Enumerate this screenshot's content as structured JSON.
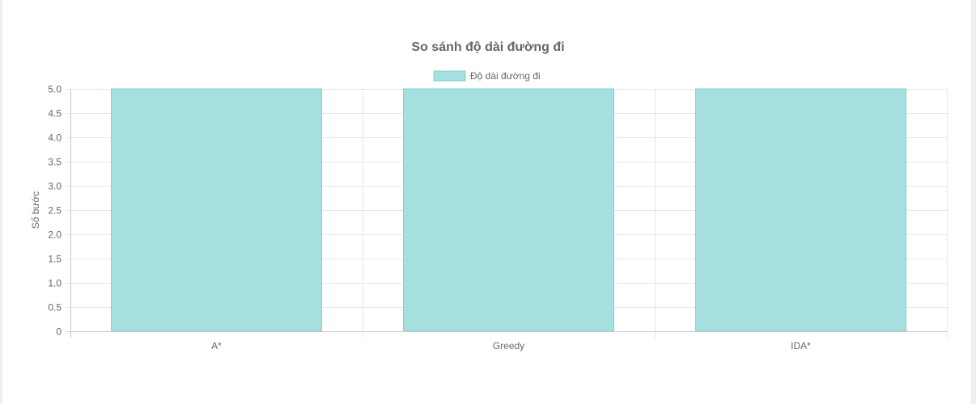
{
  "chart_data": {
    "type": "bar",
    "title": "So sánh độ dài đường đi",
    "categories": [
      "A*",
      "Greedy",
      "IDA*"
    ],
    "series": [
      {
        "name": "Độ dài đường đi",
        "values": [
          5,
          5,
          5
        ],
        "fill_color": "#a6dfe0",
        "border_color": "#7dd0d1"
      }
    ],
    "xlabel": "",
    "ylabel": "Số bước",
    "ylim": [
      0,
      5
    ],
    "y_ticks": [
      "0",
      "0.5",
      "1.0",
      "1.5",
      "2.0",
      "2.5",
      "3.0",
      "3.5",
      "4.0",
      "4.5",
      "5.0"
    ],
    "grid": true,
    "legend_position": "top"
  }
}
